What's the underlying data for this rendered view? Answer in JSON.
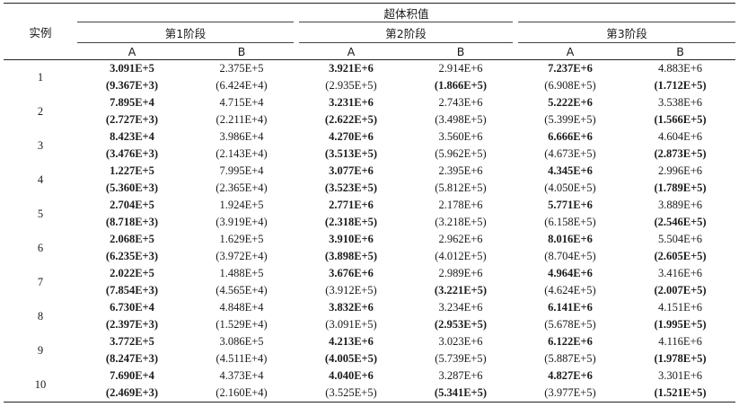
{
  "header": {
    "row_label": "实例",
    "group_label": "超体积值",
    "stages": [
      "第1阶段",
      "第2阶段",
      "第3阶段"
    ],
    "algos": [
      "A",
      "B"
    ]
  },
  "rows": [
    {
      "id": "1",
      "mean": [
        {
          "v": "3.091E+5",
          "b": true
        },
        {
          "v": "2.375E+5",
          "b": false
        },
        {
          "v": "3.921E+6",
          "b": true
        },
        {
          "v": "2.914E+6",
          "b": false
        },
        {
          "v": "7.237E+6",
          "b": true
        },
        {
          "v": "4.883E+6",
          "b": false
        }
      ],
      "std": [
        {
          "v": "(9.367E+3)",
          "b": true
        },
        {
          "v": "(6.424E+4)",
          "b": false
        },
        {
          "v": "(2.935E+5)",
          "b": false
        },
        {
          "v": "(1.866E+5)",
          "b": true
        },
        {
          "v": "(6.908E+5)",
          "b": false
        },
        {
          "v": "(1.712E+5)",
          "b": true
        }
      ]
    },
    {
      "id": "2",
      "mean": [
        {
          "v": "7.895E+4",
          "b": true
        },
        {
          "v": "4.715E+4",
          "b": false
        },
        {
          "v": "3.231E+6",
          "b": true
        },
        {
          "v": "2.743E+6",
          "b": false
        },
        {
          "v": "5.222E+6",
          "b": true
        },
        {
          "v": "3.538E+6",
          "b": false
        }
      ],
      "std": [
        {
          "v": "(2.727E+3)",
          "b": true
        },
        {
          "v": "(2.211E+4)",
          "b": false
        },
        {
          "v": "(2.622E+5)",
          "b": true
        },
        {
          "v": "(3.498E+5)",
          "b": false
        },
        {
          "v": "(5.399E+5)",
          "b": false
        },
        {
          "v": "(1.566E+5)",
          "b": true
        }
      ]
    },
    {
      "id": "3",
      "mean": [
        {
          "v": "8.423E+4",
          "b": true
        },
        {
          "v": "3.986E+4",
          "b": false
        },
        {
          "v": "4.270E+6",
          "b": true
        },
        {
          "v": "3.560E+6",
          "b": false
        },
        {
          "v": "6.666E+6",
          "b": true
        },
        {
          "v": "4.604E+6",
          "b": false
        }
      ],
      "std": [
        {
          "v": "(3.476E+3)",
          "b": true
        },
        {
          "v": "(2.143E+4)",
          "b": false
        },
        {
          "v": "(3.513E+5)",
          "b": true
        },
        {
          "v": "(5.962E+5)",
          "b": false
        },
        {
          "v": "(4.673E+5)",
          "b": false
        },
        {
          "v": "(2.873E+5)",
          "b": true
        }
      ]
    },
    {
      "id": "4",
      "mean": [
        {
          "v": "1.227E+5",
          "b": true
        },
        {
          "v": "7.995E+4",
          "b": false
        },
        {
          "v": "3.077E+6",
          "b": true
        },
        {
          "v": "2.395E+6",
          "b": false
        },
        {
          "v": "4.345E+6",
          "b": true
        },
        {
          "v": "2.996E+6",
          "b": false
        }
      ],
      "std": [
        {
          "v": "(5.360E+3)",
          "b": true
        },
        {
          "v": "(2.365E+4)",
          "b": false
        },
        {
          "v": "(3.523E+5)",
          "b": true
        },
        {
          "v": "(5.812E+5)",
          "b": false
        },
        {
          "v": "(4.050E+5)",
          "b": false
        },
        {
          "v": "(1.789E+5)",
          "b": true
        }
      ]
    },
    {
      "id": "5",
      "mean": [
        {
          "v": "2.704E+5",
          "b": true
        },
        {
          "v": "1.924E+5",
          "b": false
        },
        {
          "v": "2.771E+6",
          "b": true
        },
        {
          "v": "2.178E+6",
          "b": false
        },
        {
          "v": "5.771E+6",
          "b": true
        },
        {
          "v": "3.889E+6",
          "b": false
        }
      ],
      "std": [
        {
          "v": "(8.718E+3)",
          "b": true
        },
        {
          "v": "(3.919E+4)",
          "b": false
        },
        {
          "v": "(2.318E+5)",
          "b": true
        },
        {
          "v": "(3.218E+5)",
          "b": false
        },
        {
          "v": "(6.158E+5)",
          "b": false
        },
        {
          "v": "(2.546E+5)",
          "b": true
        }
      ]
    },
    {
      "id": "6",
      "mean": [
        {
          "v": "2.068E+5",
          "b": true
        },
        {
          "v": "1.629E+5",
          "b": false
        },
        {
          "v": "3.910E+6",
          "b": true
        },
        {
          "v": "2.962E+6",
          "b": false
        },
        {
          "v": "8.016E+6",
          "b": true
        },
        {
          "v": "5.504E+6",
          "b": false
        }
      ],
      "std": [
        {
          "v": "(6.235E+3)",
          "b": true
        },
        {
          "v": "(3.972E+4)",
          "b": false
        },
        {
          "v": "(3.898E+5)",
          "b": true
        },
        {
          "v": "(4.012E+5)",
          "b": false
        },
        {
          "v": "(8.704E+5)",
          "b": false
        },
        {
          "v": "(2.605E+5)",
          "b": true
        }
      ]
    },
    {
      "id": "7",
      "mean": [
        {
          "v": "2.022E+5",
          "b": true
        },
        {
          "v": "1.488E+5",
          "b": false
        },
        {
          "v": "3.676E+6",
          "b": true
        },
        {
          "v": "2.989E+6",
          "b": false
        },
        {
          "v": "4.964E+6",
          "b": true
        },
        {
          "v": "3.416E+6",
          "b": false
        }
      ],
      "std": [
        {
          "v": "(7.854E+3)",
          "b": true
        },
        {
          "v": "(4.565E+4)",
          "b": false
        },
        {
          "v": "(3.912E+5)",
          "b": false
        },
        {
          "v": "(3.221E+5)",
          "b": true
        },
        {
          "v": "(4.624E+5)",
          "b": false
        },
        {
          "v": "(2.007E+5)",
          "b": true
        }
      ]
    },
    {
      "id": "8",
      "mean": [
        {
          "v": "6.730E+4",
          "b": true
        },
        {
          "v": "4.848E+4",
          "b": false
        },
        {
          "v": "3.832E+6",
          "b": true
        },
        {
          "v": "3.234E+6",
          "b": false
        },
        {
          "v": "6.141E+6",
          "b": true
        },
        {
          "v": "4.151E+6",
          "b": false
        }
      ],
      "std": [
        {
          "v": "(2.397E+3)",
          "b": true
        },
        {
          "v": "(1.529E+4)",
          "b": false
        },
        {
          "v": "(3.091E+5)",
          "b": false
        },
        {
          "v": "(2.953E+5)",
          "b": true
        },
        {
          "v": "(5.678E+5)",
          "b": false
        },
        {
          "v": "(1.995E+5)",
          "b": true
        }
      ]
    },
    {
      "id": "9",
      "mean": [
        {
          "v": "3.772E+5",
          "b": true
        },
        {
          "v": "3.086E+5",
          "b": false
        },
        {
          "v": "4.213E+6",
          "b": true
        },
        {
          "v": "3.023E+6",
          "b": false
        },
        {
          "v": "6.122E+6",
          "b": true
        },
        {
          "v": "4.116E+6",
          "b": false
        }
      ],
      "std": [
        {
          "v": "(8.247E+3)",
          "b": true
        },
        {
          "v": "(4.511E+4)",
          "b": false
        },
        {
          "v": "(4.005E+5)",
          "b": true
        },
        {
          "v": "(5.739E+5)",
          "b": false
        },
        {
          "v": "(5.887E+5)",
          "b": false
        },
        {
          "v": "(1.978E+5)",
          "b": true
        }
      ]
    },
    {
      "id": "10",
      "mean": [
        {
          "v": "7.690E+4",
          "b": true
        },
        {
          "v": "4.373E+4",
          "b": false
        },
        {
          "v": "4.040E+6",
          "b": true
        },
        {
          "v": "3.287E+6",
          "b": false
        },
        {
          "v": "4.827E+6",
          "b": true
        },
        {
          "v": "3.301E+6",
          "b": false
        }
      ],
      "std": [
        {
          "v": "(2.469E+3)",
          "b": true
        },
        {
          "v": "(2.160E+4)",
          "b": false
        },
        {
          "v": "(3.525E+5)",
          "b": false
        },
        {
          "v": "(5.341E+5)",
          "b": true
        },
        {
          "v": "(3.977E+5)",
          "b": false
        },
        {
          "v": "(1.521E+5)",
          "b": true
        }
      ]
    }
  ]
}
